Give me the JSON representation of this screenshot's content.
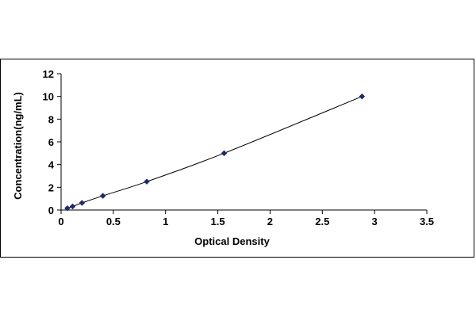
{
  "chart_data": {
    "type": "scatter",
    "title": "",
    "xlabel": "Optical Density",
    "ylabel": "Concentration(ng/mL)",
    "xlim": [
      0,
      3.5
    ],
    "ylim": [
      0,
      12
    ],
    "x_ticks": [
      "0",
      "0.5",
      "1",
      "1.5",
      "2",
      "2.5",
      "3",
      "3.5"
    ],
    "y_ticks": [
      "0",
      "2",
      "4",
      "6",
      "8",
      "10",
      "12"
    ],
    "grid": false,
    "legend": "none",
    "series": [
      {
        "points": [
          {
            "x": 0.06,
            "y": 0.156
          },
          {
            "x": 0.11,
            "y": 0.313
          },
          {
            "x": 0.2,
            "y": 0.625
          },
          {
            "x": 0.4,
            "y": 1.25
          },
          {
            "x": 0.82,
            "y": 2.5
          },
          {
            "x": 1.56,
            "y": 5
          },
          {
            "x": 2.88,
            "y": 10
          }
        ],
        "trendline": true,
        "marker": "diamond",
        "color": "#1F2A6B"
      }
    ]
  }
}
